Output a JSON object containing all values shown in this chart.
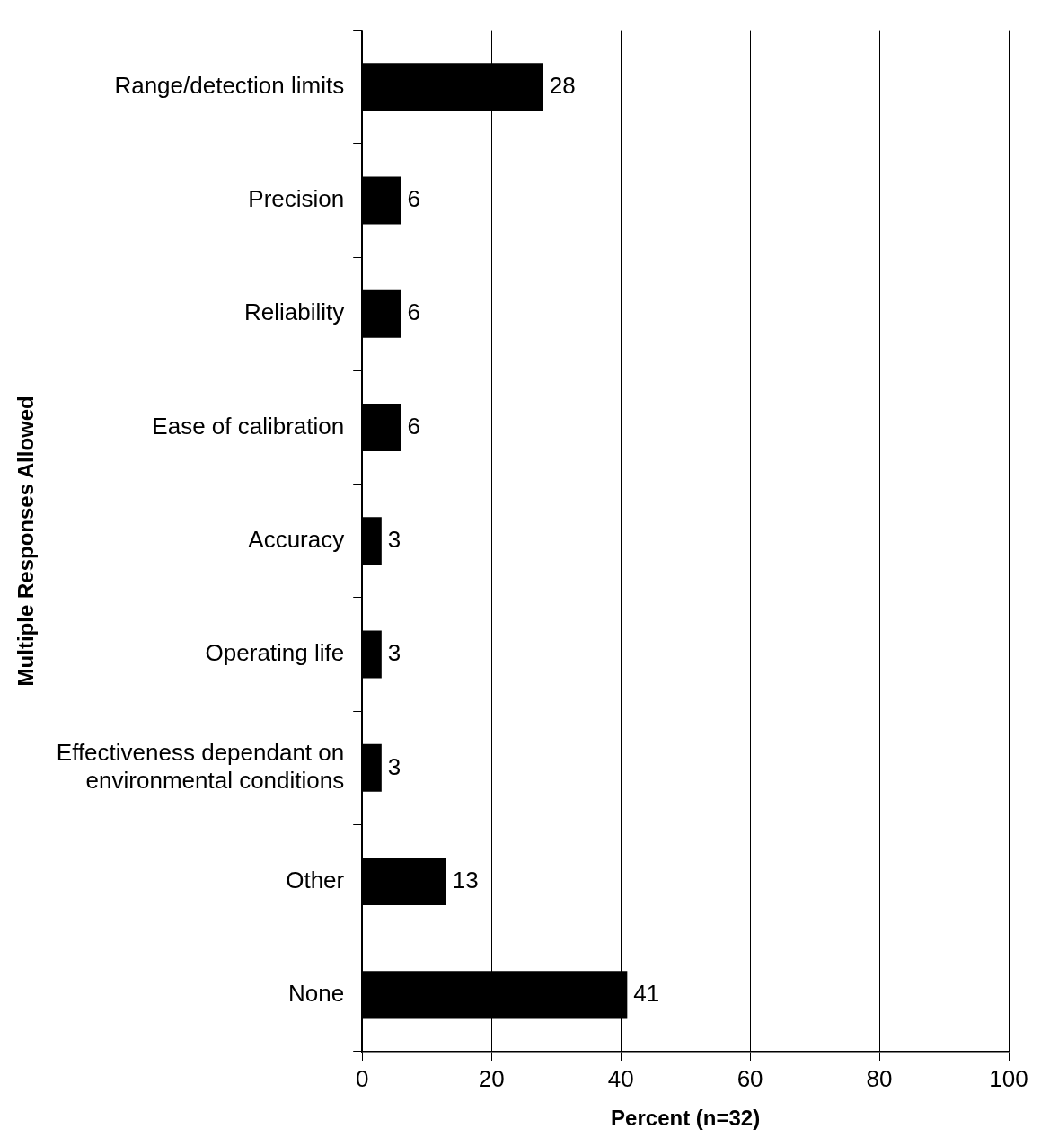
{
  "chart_data": {
    "type": "bar",
    "orientation": "horizontal",
    "categories": [
      "Range/detection limits",
      "Precision",
      "Reliability",
      "Ease of calibration",
      "Accuracy",
      "Operating life",
      "Effectiveness dependant on environmental conditions",
      "Other",
      "None"
    ],
    "values": [
      28,
      6,
      6,
      6,
      3,
      3,
      3,
      13,
      41
    ],
    "color": "#000000",
    "xlim": [
      0,
      100
    ],
    "xticks": [
      0,
      20,
      40,
      60,
      80,
      100
    ],
    "grid": "x",
    "data_labels": true,
    "legend": false,
    "xlabel": "Percent (n=32)",
    "ylabel": "Multiple Responses Allowed"
  }
}
